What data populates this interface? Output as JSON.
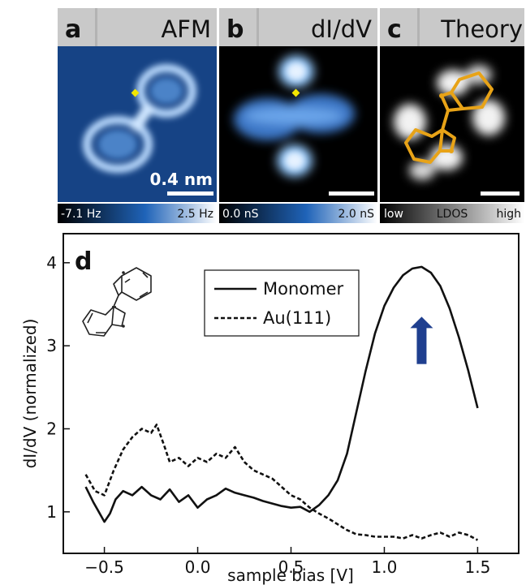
{
  "panels": [
    {
      "letter": "a",
      "name": "AFM"
    },
    {
      "letter": "b",
      "name": "dI/dV"
    },
    {
      "letter": "c",
      "name": "Theory"
    }
  ],
  "scale_bar": {
    "label": "0.4 nm"
  },
  "colorbars": [
    {
      "min_label": "-7.1 Hz",
      "max_label": "2.5 Hz"
    },
    {
      "min_label": "0.0 nS",
      "max_label": "2.0 nS"
    },
    {
      "min_label": "low",
      "mid_label": "LDOS",
      "max_label": "high"
    }
  ],
  "chart_data": {
    "panel_letter": "d",
    "type": "line",
    "xlabel": "sample bias [V]",
    "ylabel": "dI/dV (normalized)",
    "xlim": [
      -0.72,
      1.72
    ],
    "ylim": [
      0.5,
      4.35
    ],
    "xticks": [
      -0.5,
      0.0,
      0.5,
      1.0,
      1.5
    ],
    "xtick_labels": [
      "−0.5",
      "0.0",
      "0.5",
      "1.0",
      "1.5"
    ],
    "yticks": [
      1,
      2,
      3,
      4
    ],
    "ytick_labels": [
      "1",
      "2",
      "3",
      "4"
    ],
    "grid": false,
    "legend_position": "top-center",
    "annotation_arrow_at_x": 1.2,
    "arrow_color": "#1f3f8f",
    "series": [
      {
        "name": "Monomer",
        "style": "solid",
        "x": [
          -0.6,
          -0.56,
          -0.53,
          -0.5,
          -0.47,
          -0.44,
          -0.4,
          -0.35,
          -0.3,
          -0.25,
          -0.2,
          -0.15,
          -0.1,
          -0.05,
          0.0,
          0.05,
          0.1,
          0.15,
          0.2,
          0.25,
          0.3,
          0.35,
          0.4,
          0.45,
          0.5,
          0.55,
          0.6,
          0.65,
          0.7,
          0.75,
          0.8,
          0.85,
          0.9,
          0.95,
          1.0,
          1.05,
          1.1,
          1.15,
          1.2,
          1.25,
          1.3,
          1.35,
          1.4,
          1.45,
          1.5
        ],
        "y": [
          1.3,
          1.12,
          1.0,
          0.88,
          0.98,
          1.15,
          1.25,
          1.2,
          1.3,
          1.2,
          1.15,
          1.27,
          1.12,
          1.2,
          1.05,
          1.15,
          1.2,
          1.28,
          1.23,
          1.2,
          1.17,
          1.13,
          1.1,
          1.07,
          1.05,
          1.06,
          1.0,
          1.08,
          1.2,
          1.38,
          1.7,
          2.2,
          2.7,
          3.15,
          3.48,
          3.7,
          3.85,
          3.93,
          3.95,
          3.88,
          3.72,
          3.45,
          3.1,
          2.7,
          2.25
        ]
      },
      {
        "name": "Au(111)",
        "style": "dashed",
        "x": [
          -0.6,
          -0.55,
          -0.5,
          -0.45,
          -0.4,
          -0.35,
          -0.3,
          -0.25,
          -0.22,
          -0.18,
          -0.15,
          -0.1,
          -0.05,
          0.0,
          0.05,
          0.1,
          0.15,
          0.2,
          0.25,
          0.3,
          0.35,
          0.4,
          0.45,
          0.5,
          0.55,
          0.6,
          0.65,
          0.7,
          0.75,
          0.8,
          0.85,
          0.9,
          0.95,
          1.0,
          1.05,
          1.1,
          1.15,
          1.2,
          1.25,
          1.3,
          1.35,
          1.4,
          1.45,
          1.5
        ],
        "y": [
          1.45,
          1.25,
          1.2,
          1.5,
          1.75,
          1.9,
          2.0,
          1.95,
          2.05,
          1.8,
          1.6,
          1.65,
          1.55,
          1.65,
          1.6,
          1.7,
          1.65,
          1.78,
          1.6,
          1.5,
          1.45,
          1.4,
          1.3,
          1.2,
          1.15,
          1.05,
          0.98,
          0.92,
          0.85,
          0.78,
          0.73,
          0.72,
          0.7,
          0.7,
          0.7,
          0.68,
          0.72,
          0.68,
          0.72,
          0.75,
          0.7,
          0.75,
          0.72,
          0.66
        ]
      }
    ]
  }
}
